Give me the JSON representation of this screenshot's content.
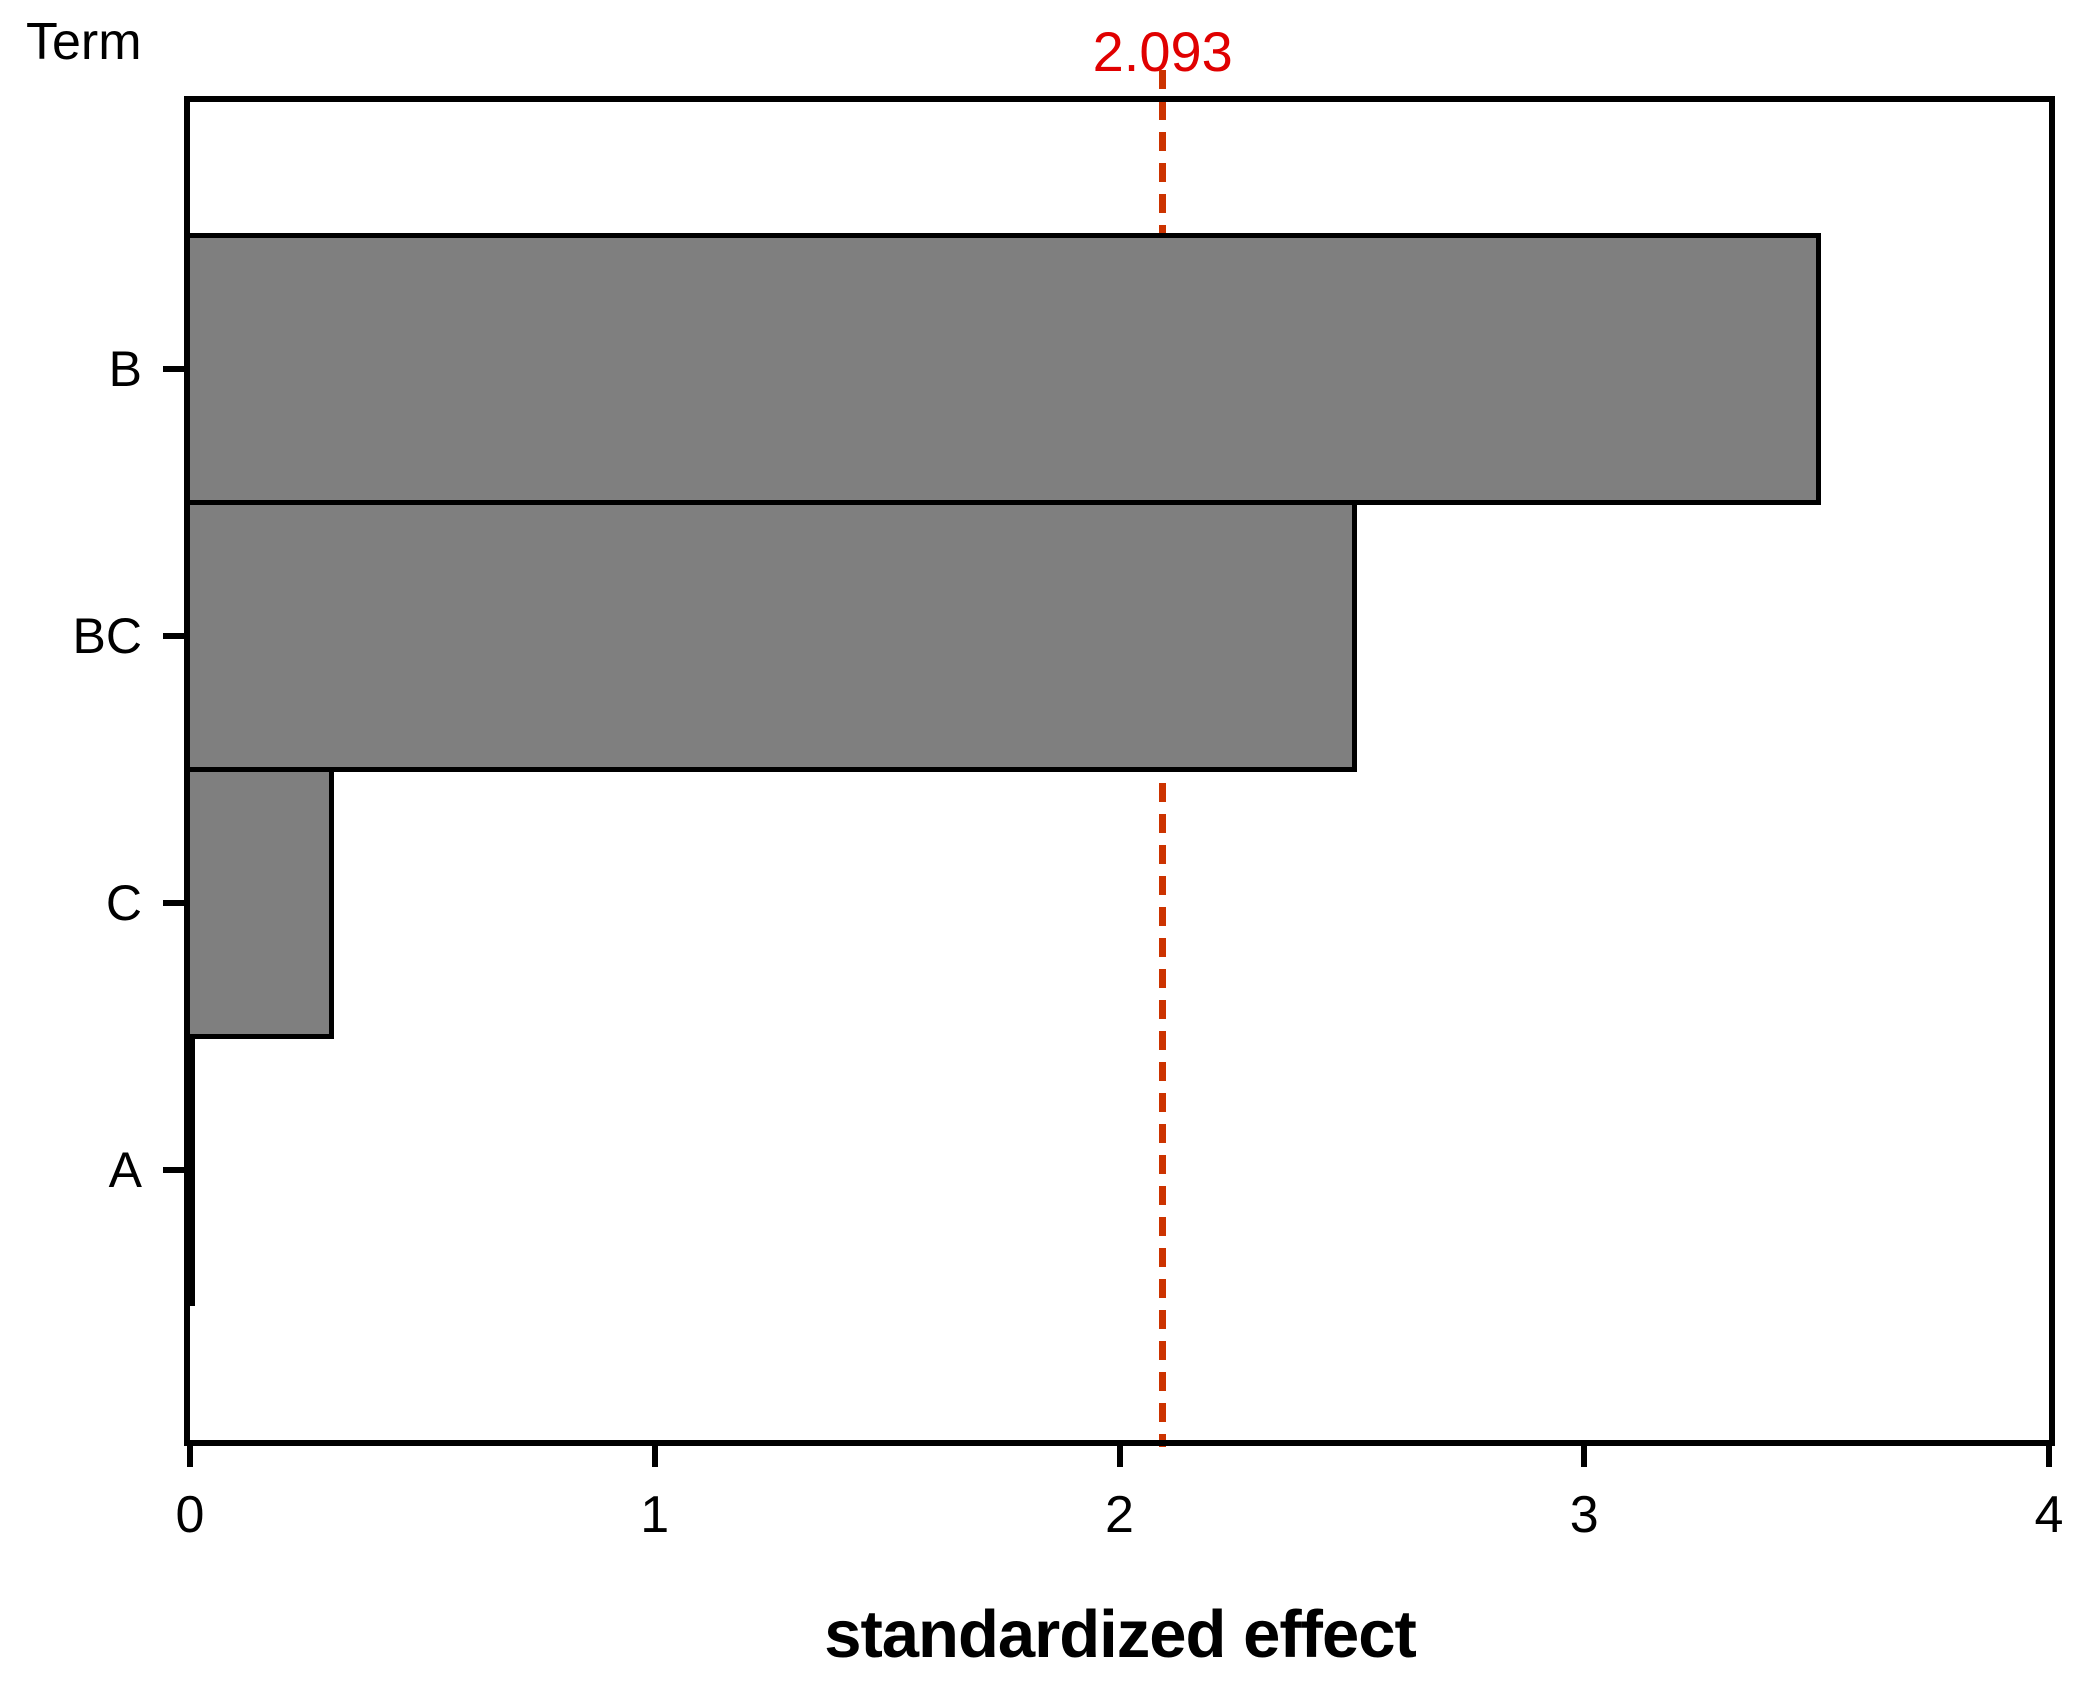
{
  "colors": {
    "background": "#ffffff",
    "text": "#000000",
    "axis": "#000000",
    "bar_fill": "#7f7f7f",
    "bar_border": "#000000",
    "reference_line": "#cc3300",
    "reference_label": "#e00000"
  },
  "chart_data": {
    "type": "bar",
    "orientation": "horizontal",
    "title": "",
    "ylabel": "Term",
    "xlabel": "standardized effect",
    "categories": [
      "B",
      "BC",
      "C",
      "A"
    ],
    "values": [
      3.51,
      2.51,
      0.31,
      0.01
    ],
    "xlim": [
      0,
      4
    ],
    "xticks": [
      "0",
      "1",
      "2",
      "3",
      "4"
    ],
    "grid": false,
    "legend": false,
    "reference_line": {
      "value": 2.093,
      "label": "2.093"
    }
  }
}
